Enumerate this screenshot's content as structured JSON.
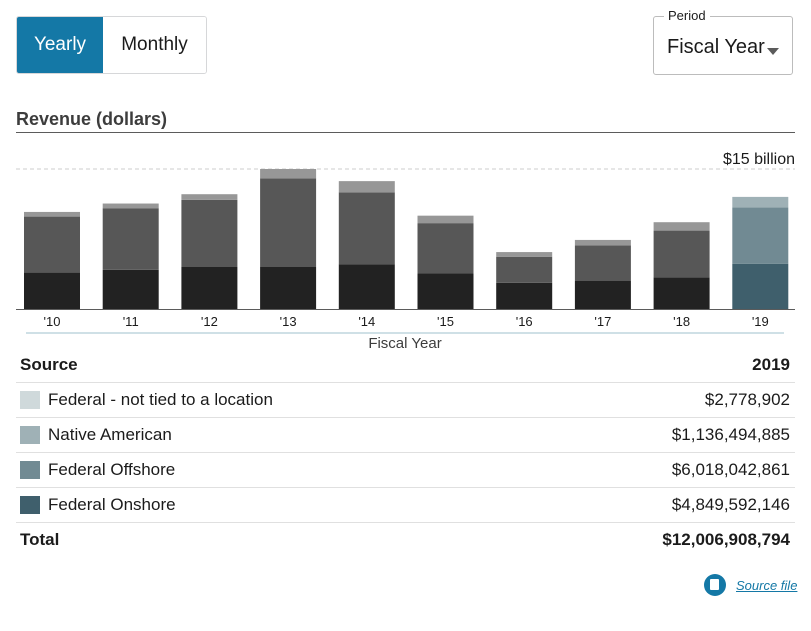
{
  "toggle": {
    "yearly": "Yearly",
    "monthly": "Monthly",
    "active": "yearly"
  },
  "period": {
    "label": "Period",
    "value": "Fiscal Year"
  },
  "section_title": "Revenue (dollars)",
  "colors": {
    "past_layers": [
      "#222222",
      "#575757",
      "#979797",
      "#b9b9b9"
    ],
    "current_layers": [
      "#3f5f6c",
      "#718a93",
      "#9fb1b6",
      "#cfd9db"
    ],
    "gridline": "#cccccc",
    "accent": "#1478a6"
  },
  "chart_data": {
    "type": "bar",
    "stacked": true,
    "categories": [
      "'10",
      "'11",
      "'12",
      "'13",
      "'14",
      "'15",
      "'16",
      "'17",
      "'18",
      "'19"
    ],
    "series": [
      {
        "name": "Federal Onshore",
        "values": [
          3.9,
          4.2,
          4.5,
          4.5,
          4.8,
          3.8,
          2.8,
          3.0,
          3.4,
          4.85
        ]
      },
      {
        "name": "Federal Offshore",
        "values": [
          6.0,
          6.6,
          7.2,
          9.5,
          7.7,
          5.4,
          2.8,
          3.8,
          5.0,
          6.02
        ]
      },
      {
        "name": "Native American",
        "values": [
          0.5,
          0.5,
          0.6,
          1.0,
          1.2,
          0.8,
          0.5,
          0.6,
          0.9,
          1.14
        ]
      },
      {
        "name": "Federal - not tied to a location",
        "values": [
          0.0,
          0.0,
          0.0,
          0.0,
          0.0,
          0.0,
          0.0,
          0.0,
          0.0,
          0.003
        ]
      }
    ],
    "xlabel": "Fiscal Year",
    "ymax_label": "$15 billion",
    "ylim": [
      0,
      15
    ],
    "highlighted_category": "'19"
  },
  "table": {
    "header": {
      "source": "Source",
      "year": "2019"
    },
    "rows": [
      {
        "label": "Federal - not tied to a location",
        "value": "$2,778,902",
        "color": "#cfd9db"
      },
      {
        "label": "Native American",
        "value": "$1,136,494,885",
        "color": "#9fb1b6"
      },
      {
        "label": "Federal Offshore",
        "value": "$6,018,042,861",
        "color": "#718a93"
      },
      {
        "label": "Federal Onshore",
        "value": "$4,849,592,146",
        "color": "#3f5f6c"
      }
    ],
    "total": {
      "label": "Total",
      "value": "$12,006,908,794"
    }
  },
  "source_link": {
    "label": "Source file",
    "icon": "document-download-icon"
  }
}
